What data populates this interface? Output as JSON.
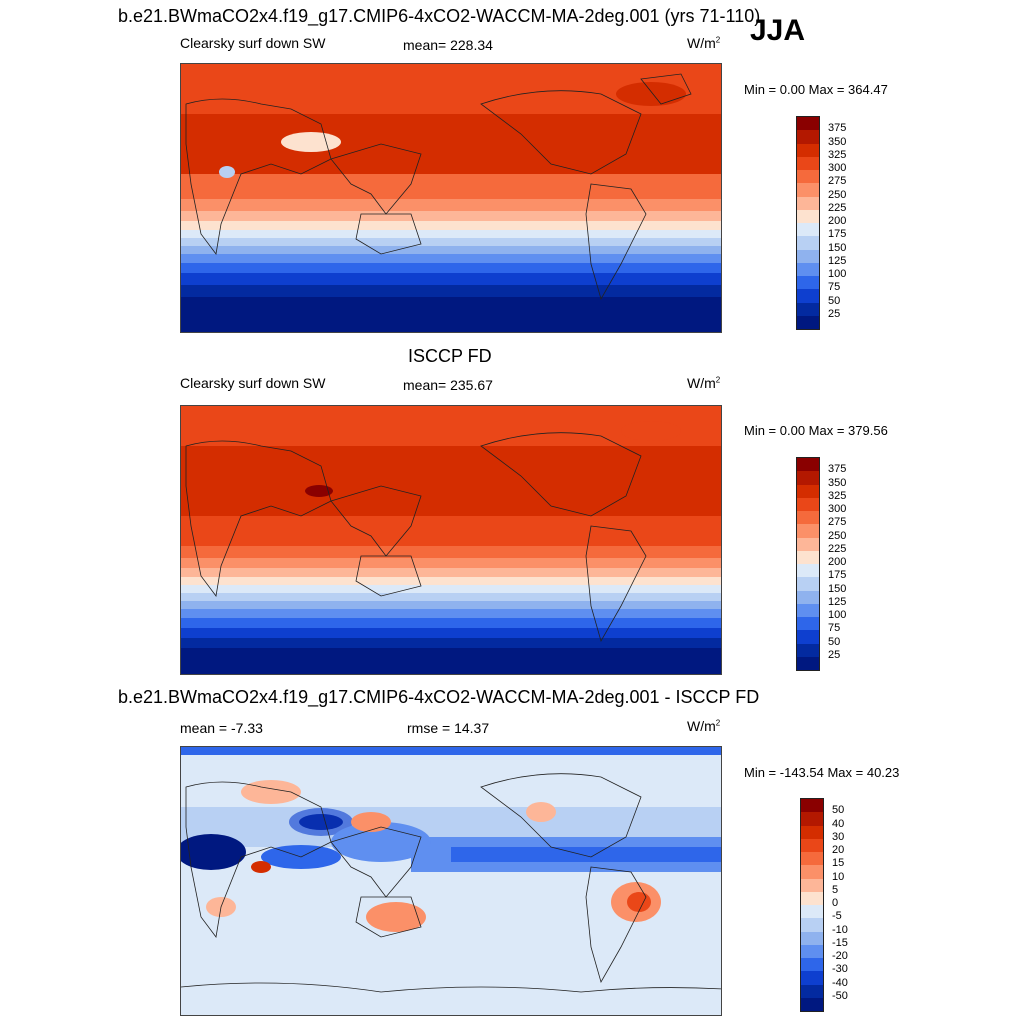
{
  "header": {
    "main_title": "b.e21.BWmaCO2x4.f19_g17.CMIP6-4xCO2-WACCM-MA-2deg.001 (yrs 71-110)",
    "season": "JJA"
  },
  "panels": {
    "p1": {
      "variable": "Clearsky surf down SW",
      "mean": "mean= 228.34",
      "units": "W/m",
      "units_sup": "2",
      "minmax": "Min =   0.00 Max = 364.47"
    },
    "p2": {
      "title": "ISCCP FD",
      "variable": "Clearsky surf down SW",
      "mean": "mean= 235.67",
      "units": "W/m",
      "units_sup": "2",
      "minmax": "Min =   0.00 Max = 379.56"
    },
    "p3": {
      "title": "b.e21.BWmaCO2x4.f19_g17.CMIP6-4xCO2-WACCM-MA-2deg.001 - ISCCP FD",
      "mean": "mean =  -7.33",
      "rmse": "rmse =  14.37",
      "units": "W/m",
      "units_sup": "2",
      "minmax": "Min = -143.54 Max =  40.23"
    }
  },
  "colorbars": {
    "abs": {
      "labels": [
        "375",
        "350",
        "325",
        "300",
        "275",
        "250",
        "225",
        "200",
        "175",
        "150",
        "125",
        "100",
        "75",
        "50",
        "25"
      ],
      "colors": [
        "#8a0000",
        "#b31800",
        "#d42d00",
        "#ea4718",
        "#f56a3c",
        "#fb9068",
        "#fdb698",
        "#fde2cf",
        "#dce9f8",
        "#b8d0f3",
        "#8fb2ee",
        "#5f8ff0",
        "#2e66ea",
        "#0e3fcf",
        "#032aa0",
        "#001880"
      ]
    },
    "diff": {
      "labels": [
        "50",
        "40",
        "30",
        "20",
        "15",
        "10",
        "5",
        "0",
        "-5",
        "-10",
        "-15",
        "-20",
        "-30",
        "-40",
        "-50"
      ],
      "colors": [
        "#8a0000",
        "#b31800",
        "#d42d00",
        "#ea4718",
        "#f56a3c",
        "#fb9068",
        "#fdb698",
        "#fde2cf",
        "#dce9f8",
        "#b8d0f3",
        "#8fb2ee",
        "#5f8ff0",
        "#2e66ea",
        "#0e3fcf",
        "#032aa0",
        "#001880"
      ]
    }
  }
}
